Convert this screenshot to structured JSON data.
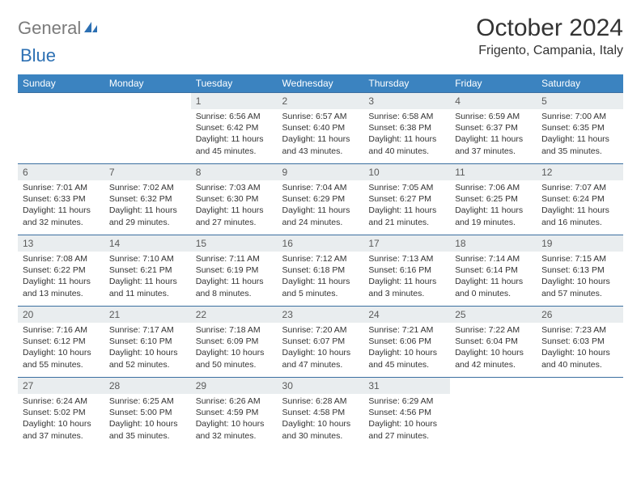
{
  "logo": {
    "text1": "General",
    "text2": "Blue"
  },
  "title": "October 2024",
  "location": "Frigento, Campania, Italy",
  "colors": {
    "header_bg": "#3b83c0",
    "header_text": "#ffffff",
    "daynum_bg": "#e9edef",
    "border": "#3b6fa0",
    "logo_gray": "#7b7b7b",
    "logo_blue": "#2d70b3"
  },
  "weekdays": [
    "Sunday",
    "Monday",
    "Tuesday",
    "Wednesday",
    "Thursday",
    "Friday",
    "Saturday"
  ],
  "weeks": [
    [
      null,
      null,
      {
        "n": "1",
        "sr": "6:56 AM",
        "ss": "6:42 PM",
        "dl": "11 hours and 45 minutes."
      },
      {
        "n": "2",
        "sr": "6:57 AM",
        "ss": "6:40 PM",
        "dl": "11 hours and 43 minutes."
      },
      {
        "n": "3",
        "sr": "6:58 AM",
        "ss": "6:38 PM",
        "dl": "11 hours and 40 minutes."
      },
      {
        "n": "4",
        "sr": "6:59 AM",
        "ss": "6:37 PM",
        "dl": "11 hours and 37 minutes."
      },
      {
        "n": "5",
        "sr": "7:00 AM",
        "ss": "6:35 PM",
        "dl": "11 hours and 35 minutes."
      }
    ],
    [
      {
        "n": "6",
        "sr": "7:01 AM",
        "ss": "6:33 PM",
        "dl": "11 hours and 32 minutes."
      },
      {
        "n": "7",
        "sr": "7:02 AM",
        "ss": "6:32 PM",
        "dl": "11 hours and 29 minutes."
      },
      {
        "n": "8",
        "sr": "7:03 AM",
        "ss": "6:30 PM",
        "dl": "11 hours and 27 minutes."
      },
      {
        "n": "9",
        "sr": "7:04 AM",
        "ss": "6:29 PM",
        "dl": "11 hours and 24 minutes."
      },
      {
        "n": "10",
        "sr": "7:05 AM",
        "ss": "6:27 PM",
        "dl": "11 hours and 21 minutes."
      },
      {
        "n": "11",
        "sr": "7:06 AM",
        "ss": "6:25 PM",
        "dl": "11 hours and 19 minutes."
      },
      {
        "n": "12",
        "sr": "7:07 AM",
        "ss": "6:24 PM",
        "dl": "11 hours and 16 minutes."
      }
    ],
    [
      {
        "n": "13",
        "sr": "7:08 AM",
        "ss": "6:22 PM",
        "dl": "11 hours and 13 minutes."
      },
      {
        "n": "14",
        "sr": "7:10 AM",
        "ss": "6:21 PM",
        "dl": "11 hours and 11 minutes."
      },
      {
        "n": "15",
        "sr": "7:11 AM",
        "ss": "6:19 PM",
        "dl": "11 hours and 8 minutes."
      },
      {
        "n": "16",
        "sr": "7:12 AM",
        "ss": "6:18 PM",
        "dl": "11 hours and 5 minutes."
      },
      {
        "n": "17",
        "sr": "7:13 AM",
        "ss": "6:16 PM",
        "dl": "11 hours and 3 minutes."
      },
      {
        "n": "18",
        "sr": "7:14 AM",
        "ss": "6:14 PM",
        "dl": "11 hours and 0 minutes."
      },
      {
        "n": "19",
        "sr": "7:15 AM",
        "ss": "6:13 PM",
        "dl": "10 hours and 57 minutes."
      }
    ],
    [
      {
        "n": "20",
        "sr": "7:16 AM",
        "ss": "6:12 PM",
        "dl": "10 hours and 55 minutes."
      },
      {
        "n": "21",
        "sr": "7:17 AM",
        "ss": "6:10 PM",
        "dl": "10 hours and 52 minutes."
      },
      {
        "n": "22",
        "sr": "7:18 AM",
        "ss": "6:09 PM",
        "dl": "10 hours and 50 minutes."
      },
      {
        "n": "23",
        "sr": "7:20 AM",
        "ss": "6:07 PM",
        "dl": "10 hours and 47 minutes."
      },
      {
        "n": "24",
        "sr": "7:21 AM",
        "ss": "6:06 PM",
        "dl": "10 hours and 45 minutes."
      },
      {
        "n": "25",
        "sr": "7:22 AM",
        "ss": "6:04 PM",
        "dl": "10 hours and 42 minutes."
      },
      {
        "n": "26",
        "sr": "7:23 AM",
        "ss": "6:03 PM",
        "dl": "10 hours and 40 minutes."
      }
    ],
    [
      {
        "n": "27",
        "sr": "6:24 AM",
        "ss": "5:02 PM",
        "dl": "10 hours and 37 minutes."
      },
      {
        "n": "28",
        "sr": "6:25 AM",
        "ss": "5:00 PM",
        "dl": "10 hours and 35 minutes."
      },
      {
        "n": "29",
        "sr": "6:26 AM",
        "ss": "4:59 PM",
        "dl": "10 hours and 32 minutes."
      },
      {
        "n": "30",
        "sr": "6:28 AM",
        "ss": "4:58 PM",
        "dl": "10 hours and 30 minutes."
      },
      {
        "n": "31",
        "sr": "6:29 AM",
        "ss": "4:56 PM",
        "dl": "10 hours and 27 minutes."
      },
      null,
      null
    ]
  ],
  "labels": {
    "sunrise": "Sunrise: ",
    "sunset": "Sunset: ",
    "daylight": "Daylight: "
  }
}
